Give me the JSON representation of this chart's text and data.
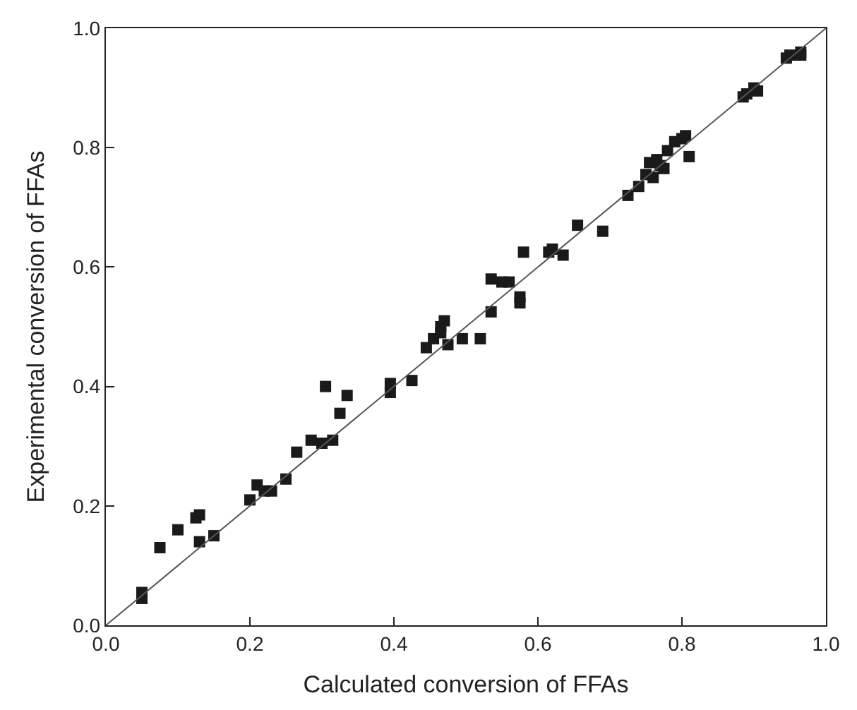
{
  "chart_data": {
    "type": "scatter",
    "xlabel": "Calculated conversion of FFAs",
    "ylabel": "Experimental conversion of FFAs",
    "xlim": [
      0,
      1
    ],
    "ylim": [
      0,
      1
    ],
    "xticks": [
      {
        "value": 0,
        "label": "0.0"
      },
      0.2,
      0.4,
      0.6,
      0.8,
      {
        "value": 1,
        "label": "1.0"
      }
    ],
    "yticks": [
      {
        "value": 0,
        "label": "0.0"
      },
      0.2,
      0.4,
      0.6,
      0.8,
      {
        "value": 1,
        "label": "1.0"
      }
    ],
    "marker": "square",
    "series": [
      {
        "color": "#1a1a1a",
        "x": [
          0.05,
          0.05,
          0.075,
          0.1,
          0.125,
          0.13,
          0.13,
          0.15,
          0.2,
          0.21,
          0.22,
          0.23,
          0.25,
          0.265,
          0.285,
          0.3,
          0.305,
          0.315,
          0.325,
          0.335,
          0.395,
          0.395,
          0.425,
          0.445,
          0.455,
          0.465,
          0.47,
          0.475,
          0.465,
          0.495,
          0.52,
          0.535,
          0.535,
          0.55,
          0.56,
          0.575,
          0.575,
          0.58,
          0.615,
          0.62,
          0.635,
          0.655,
          0.69,
          0.725,
          0.74,
          0.75,
          0.755,
          0.76,
          0.765,
          0.77,
          0.775,
          0.78,
          0.79,
          0.8,
          0.805,
          0.81,
          0.885,
          0.89,
          0.9,
          0.905,
          0.945,
          0.95,
          0.965,
          0.965
        ],
        "values": [
          0.045,
          0.055,
          0.13,
          0.16,
          0.18,
          0.185,
          0.14,
          0.15,
          0.21,
          0.235,
          0.225,
          0.225,
          0.245,
          0.29,
          0.31,
          0.305,
          0.4,
          0.31,
          0.355,
          0.385,
          0.405,
          0.39,
          0.41,
          0.465,
          0.48,
          0.49,
          0.51,
          0.47,
          0.5,
          0.48,
          0.48,
          0.58,
          0.525,
          0.575,
          0.575,
          0.54,
          0.55,
          0.625,
          0.625,
          0.63,
          0.62,
          0.67,
          0.66,
          0.72,
          0.735,
          0.755,
          0.775,
          0.75,
          0.78,
          0.77,
          0.765,
          0.795,
          0.81,
          0.815,
          0.82,
          0.785,
          0.885,
          0.89,
          0.9,
          0.895,
          0.95,
          0.955,
          0.96,
          0.955
        ]
      },
      {
        "type": "line",
        "color": "#555555",
        "line_style": "solid",
        "marker": "none",
        "x": [
          0,
          1
        ],
        "values": [
          0,
          1
        ]
      }
    ]
  }
}
